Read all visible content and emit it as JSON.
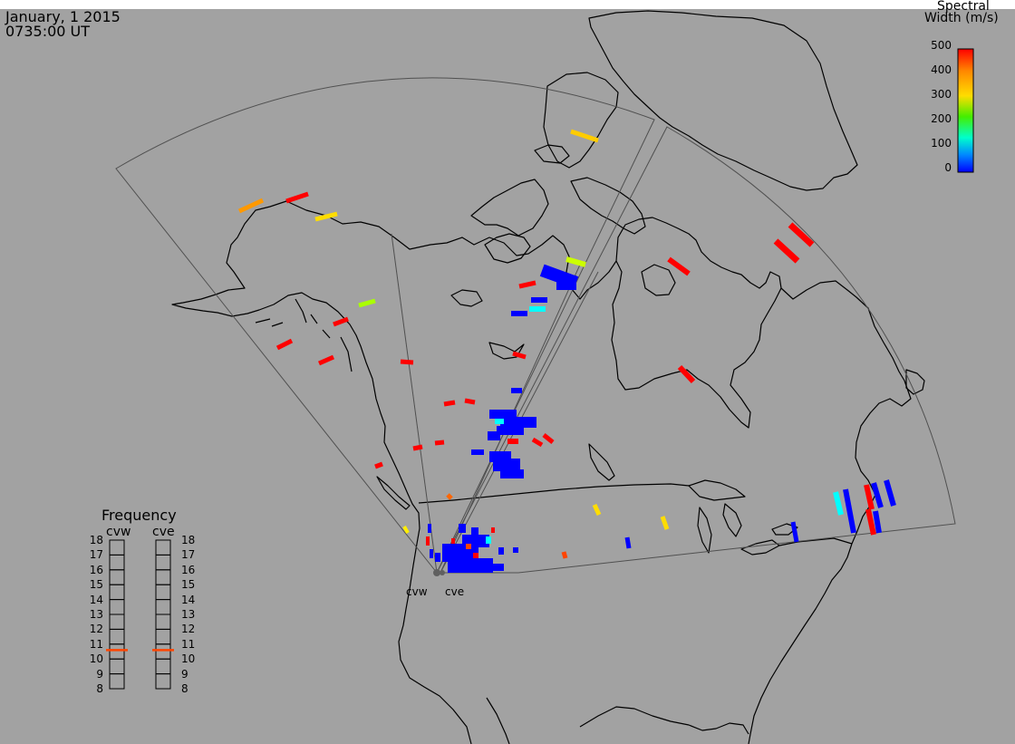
{
  "header": {
    "date": "January, 1 2015",
    "time": "0735:00 UT"
  },
  "colorbar": {
    "title_line1": "Spectral",
    "title_line2": "Width (m/s)",
    "ticks": [
      "500",
      "400",
      "300",
      "200",
      "100",
      "0"
    ],
    "colors": [
      "#ff0000",
      "#ff7f00",
      "#ffd700",
      "#c8ff00",
      "#00ff00",
      "#00ffaa",
      "#00ffff",
      "#0080ff",
      "#0000ff"
    ]
  },
  "frequency_panel": {
    "title": "Frequency",
    "radars": [
      {
        "name": "cvw",
        "value": 10.6
      },
      {
        "name": "cve",
        "value": 10.6
      }
    ],
    "ticks": [
      "18",
      "17",
      "16",
      "15",
      "14",
      "13",
      "12",
      "11",
      "10",
      "9",
      "8"
    ]
  },
  "radar_labels": [
    "cvw",
    "cve"
  ],
  "colors": {
    "background": "#a2a2a2",
    "coastline": "#000000",
    "fov": "#505050",
    "frequency_marker": "#ff4400"
  }
}
